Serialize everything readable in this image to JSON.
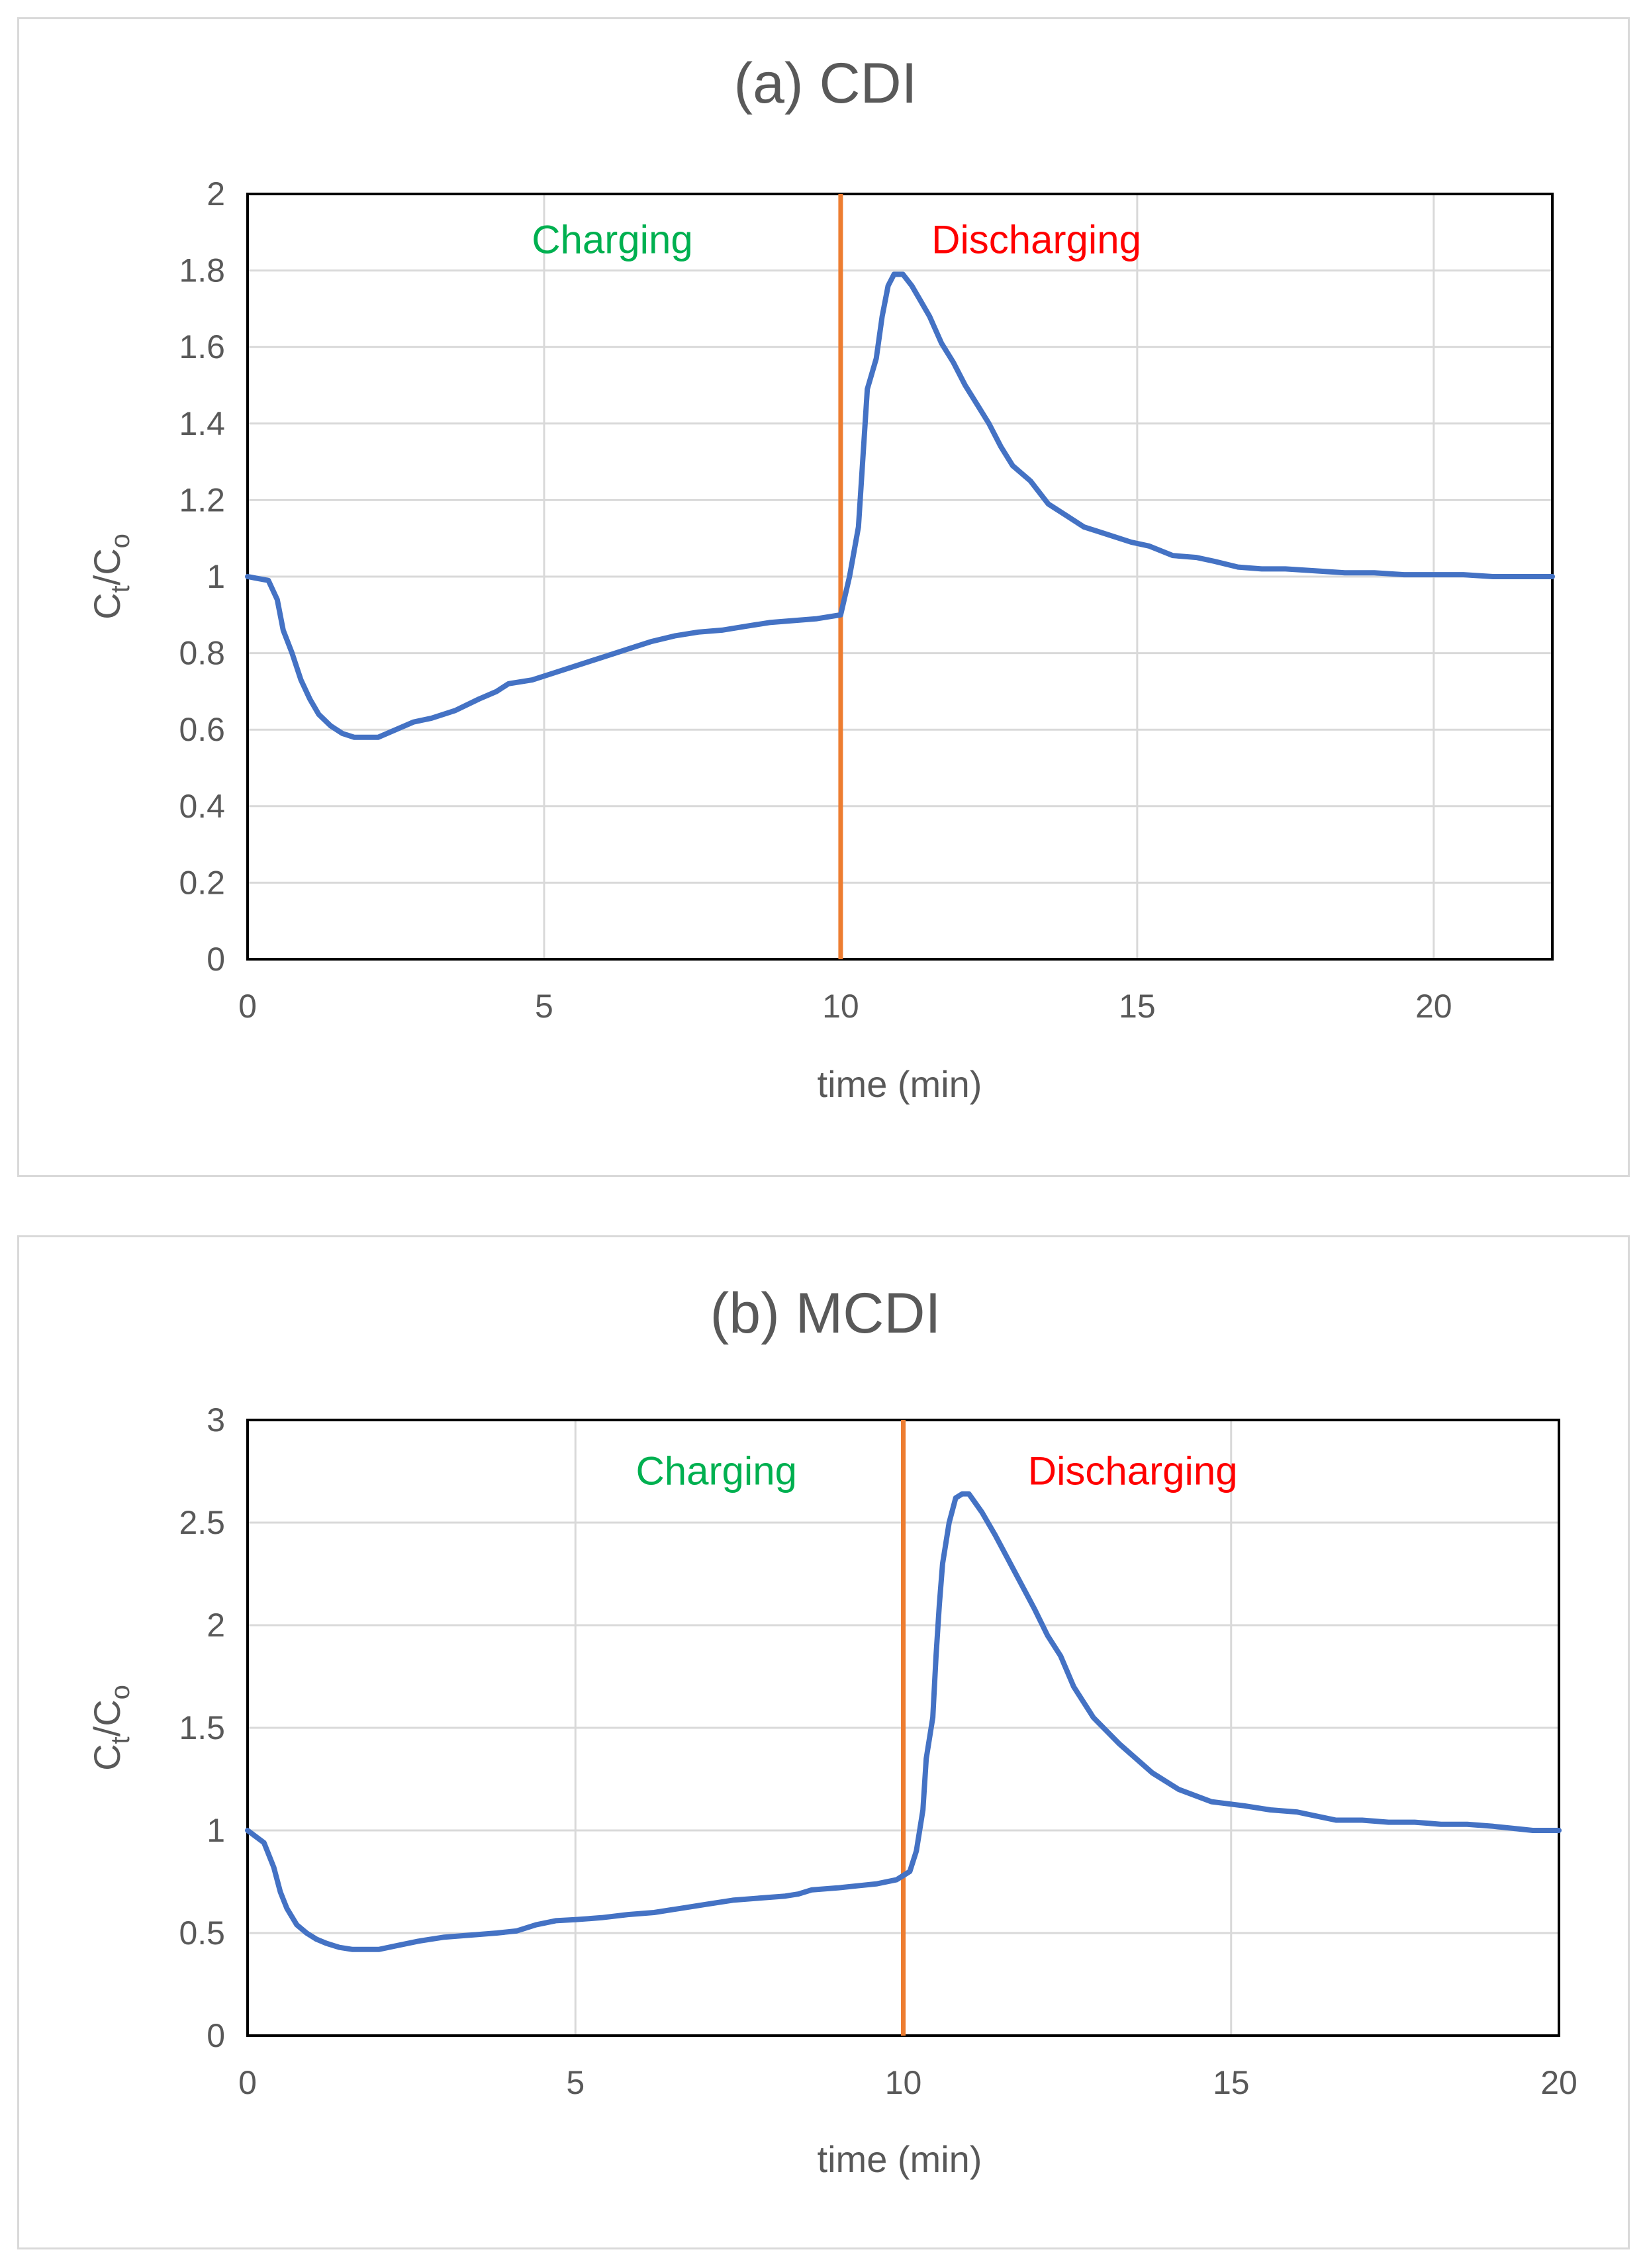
{
  "chart_data": [
    {
      "type": "line",
      "title": "(a) CDI",
      "xlabel": "time (min)",
      "ylabel": "Ct/Co",
      "ylabel_main": "C",
      "ylabel_sub1": "t",
      "ylabel_slash": "/C",
      "ylabel_sub2": "o",
      "xlim": [
        0,
        22
      ],
      "ylim": [
        0,
        2
      ],
      "xticks": [
        0,
        5,
        10,
        15,
        20
      ],
      "yticks": [
        0,
        0.2,
        0.4,
        0.6,
        0.8,
        1,
        1.2,
        1.4,
        1.6,
        1.8,
        2
      ],
      "xtick_labels": [
        "0",
        "5",
        "10",
        "15",
        "20"
      ],
      "ytick_labels": [
        "0",
        "0.2",
        "0.4",
        "0.6",
        "0.8",
        "1",
        "1.2",
        "1.4",
        "1.6",
        "1.8",
        "2"
      ],
      "grid": true,
      "series_color": "#4472c4",
      "switch_time": 10,
      "switch_color": "#ed7d31",
      "annotations": [
        {
          "text": "Charging",
          "color": "#00b050",
          "x": 6.15,
          "y": 1.88
        },
        {
          "text": "Discharging",
          "color": "#ff0000",
          "x": 13.3,
          "y": 1.88
        }
      ],
      "series": [
        {
          "name": "Ct/Co",
          "x": [
            0,
            0.35,
            0.5,
            0.6,
            0.75,
            0.9,
            1.05,
            1.2,
            1.4,
            1.6,
            1.8,
            2.0,
            2.2,
            2.5,
            2.8,
            3.1,
            3.5,
            3.9,
            4.2,
            4.4,
            4.8,
            5.2,
            5.6,
            6.0,
            6.4,
            6.8,
            7.2,
            7.6,
            8.0,
            8.4,
            8.8,
            9.2,
            9.6,
            10.0,
            10.15,
            10.3,
            10.45,
            10.6,
            10.7,
            10.8,
            10.9,
            11.05,
            11.2,
            11.35,
            11.5,
            11.7,
            11.9,
            12.1,
            12.3,
            12.5,
            12.7,
            12.9,
            13.2,
            13.5,
            13.8,
            14.1,
            14.5,
            14.9,
            15.2,
            15.6,
            16.0,
            16.3,
            16.7,
            17.1,
            17.5,
            18.0,
            18.5,
            19.0,
            19.5,
            20.0,
            20.5,
            21.0,
            21.5,
            22.0
          ],
          "y": [
            1.0,
            0.99,
            0.94,
            0.86,
            0.8,
            0.73,
            0.68,
            0.64,
            0.61,
            0.59,
            0.58,
            0.58,
            0.58,
            0.6,
            0.62,
            0.63,
            0.65,
            0.68,
            0.7,
            0.72,
            0.73,
            0.75,
            0.77,
            0.79,
            0.81,
            0.83,
            0.845,
            0.855,
            0.86,
            0.87,
            0.88,
            0.885,
            0.89,
            0.9,
            1.0,
            1.13,
            1.49,
            1.57,
            1.68,
            1.76,
            1.79,
            1.79,
            1.76,
            1.72,
            1.68,
            1.61,
            1.56,
            1.5,
            1.45,
            1.4,
            1.34,
            1.29,
            1.25,
            1.19,
            1.16,
            1.13,
            1.11,
            1.09,
            1.08,
            1.055,
            1.05,
            1.04,
            1.025,
            1.02,
            1.02,
            1.015,
            1.01,
            1.01,
            1.005,
            1.005,
            1.005,
            1.0,
            1.0,
            1.0
          ]
        }
      ]
    },
    {
      "type": "line",
      "title": "(b) MCDI",
      "xlabel": "time (min)",
      "ylabel": "Ct/Co",
      "ylabel_main": "C",
      "ylabel_sub1": "t",
      "ylabel_slash": "/C",
      "ylabel_sub2": "o",
      "xlim": [
        0,
        20
      ],
      "ylim": [
        0,
        3
      ],
      "xticks": [
        0,
        5,
        10,
        15,
        20
      ],
      "yticks": [
        0,
        0.5,
        1,
        1.5,
        2,
        2.5,
        3
      ],
      "xtick_labels": [
        "0",
        "5",
        "10",
        "15",
        "20"
      ],
      "ytick_labels": [
        "0",
        "0.5",
        "1",
        "1.5",
        "2",
        "2.5",
        "3"
      ],
      "grid": true,
      "series_color": "#4472c4",
      "switch_time": 10,
      "switch_color": "#ed7d31",
      "annotations": [
        {
          "text": "Charging",
          "color": "#00b050",
          "x": 7.15,
          "y": 2.75
        },
        {
          "text": "Discharging",
          "color": "#ff0000",
          "x": 13.5,
          "y": 2.75
        }
      ],
      "series": [
        {
          "name": "Ct/Co",
          "x": [
            0,
            0.25,
            0.4,
            0.5,
            0.6,
            0.75,
            0.9,
            1.05,
            1.2,
            1.4,
            1.6,
            1.8,
            2.0,
            2.3,
            2.6,
            3.0,
            3.4,
            3.8,
            4.1,
            4.4,
            4.7,
            5.0,
            5.4,
            5.8,
            6.2,
            6.6,
            7.0,
            7.4,
            7.8,
            8.2,
            8.4,
            8.6,
            9.0,
            9.3,
            9.6,
            9.9,
            10.0,
            10.1,
            10.2,
            10.3,
            10.35,
            10.45,
            10.5,
            10.55,
            10.6,
            10.7,
            10.8,
            10.9,
            11.0,
            11.2,
            11.4,
            11.6,
            11.8,
            12.0,
            12.2,
            12.4,
            12.6,
            12.9,
            13.3,
            13.8,
            14.2,
            14.7,
            15.2,
            15.6,
            16.0,
            16.3,
            16.6,
            17.0,
            17.4,
            17.8,
            18.2,
            18.6,
            19.0,
            19.3,
            19.6,
            20.0
          ],
          "y": [
            1.0,
            0.94,
            0.82,
            0.7,
            0.62,
            0.54,
            0.5,
            0.47,
            0.45,
            0.43,
            0.42,
            0.42,
            0.42,
            0.44,
            0.46,
            0.48,
            0.49,
            0.5,
            0.51,
            0.54,
            0.56,
            0.565,
            0.575,
            0.59,
            0.6,
            0.62,
            0.64,
            0.66,
            0.67,
            0.68,
            0.69,
            0.71,
            0.72,
            0.73,
            0.74,
            0.76,
            0.78,
            0.8,
            0.9,
            1.1,
            1.35,
            1.55,
            1.85,
            2.1,
            2.3,
            2.5,
            2.62,
            2.64,
            2.64,
            2.55,
            2.44,
            2.32,
            2.2,
            2.08,
            1.95,
            1.85,
            1.7,
            1.55,
            1.42,
            1.28,
            1.2,
            1.14,
            1.12,
            1.1,
            1.09,
            1.07,
            1.05,
            1.05,
            1.04,
            1.04,
            1.03,
            1.03,
            1.02,
            1.01,
            1.0,
            1.0
          ]
        }
      ]
    }
  ]
}
